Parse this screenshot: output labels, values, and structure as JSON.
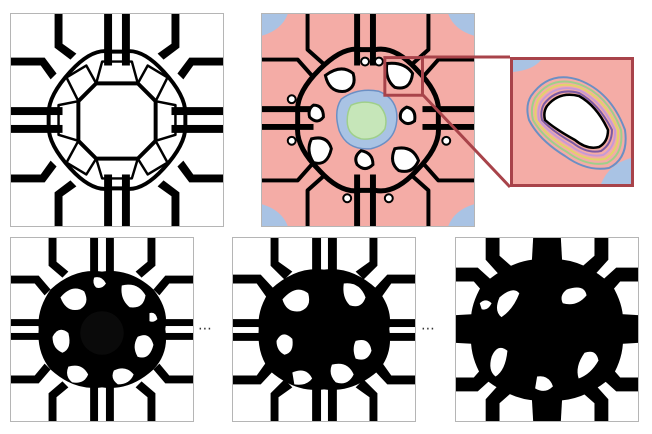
{
  "figure": {
    "panels": [
      {
        "id": "panel-a",
        "kind": "structure-outline",
        "fill": "#ffffff",
        "stroke": "#000000"
      },
      {
        "id": "panel-b",
        "kind": "level-set-field",
        "background": "#f4aca6",
        "stroke": "#000000"
      },
      {
        "id": "panel-c",
        "kind": "inset-zoom",
        "background": "#f4aca6"
      },
      {
        "id": "panel-d",
        "kind": "optimized-structure-step-1",
        "fill": "#000000"
      },
      {
        "id": "panel-e",
        "kind": "optimized-structure-step-2",
        "fill": "#000000"
      },
      {
        "id": "panel-f",
        "kind": "optimized-structure-final",
        "fill": "#000000"
      }
    ],
    "separators": [
      "⋯",
      "⋯"
    ],
    "colors": {
      "highlight": "#a8434a",
      "field_pink": "#f4aca6",
      "field_blue": "#a9c3e4",
      "field_green": "#c6e6b9",
      "contour_colors": [
        "#6b8fc4",
        "#9fcf8a",
        "#e2d36a",
        "#c79ad6",
        "#f0f0f0",
        "#7c5aa3"
      ]
    }
  }
}
